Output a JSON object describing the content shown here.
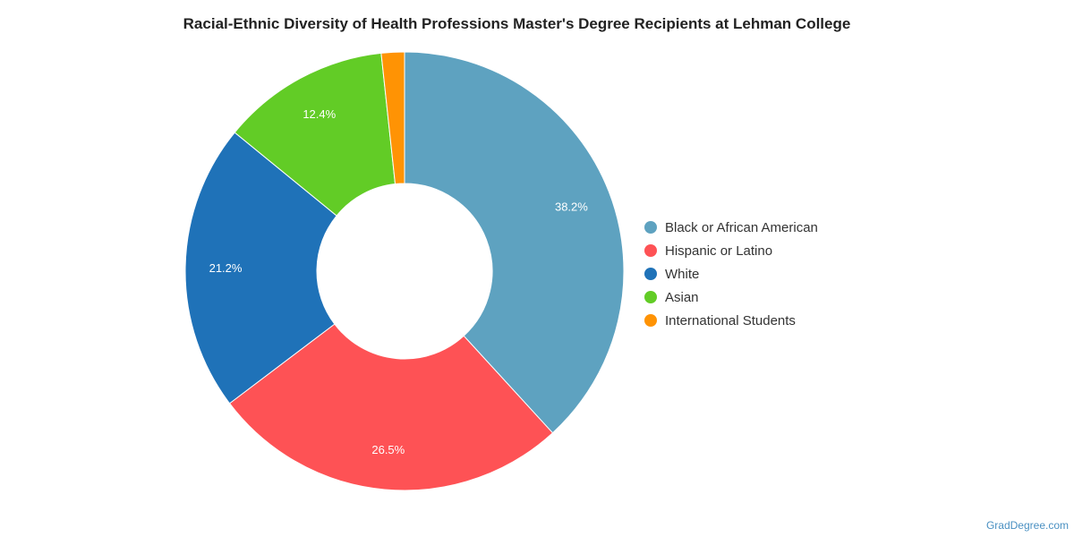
{
  "chart_data": {
    "type": "pie",
    "title": "Racial-Ethnic Diversity of Health Professions Master's Degree Recipients at Lehman College",
    "legend_position": "right",
    "slices": [
      {
        "name": "Black or African American",
        "value": 38.2,
        "label": "38.2%",
        "color": "#5ea2c0"
      },
      {
        "name": "Hispanic or Latino",
        "value": 26.5,
        "label": "26.5%",
        "color": "#fe5255"
      },
      {
        "name": "White",
        "value": 21.2,
        "label": "21.2%",
        "color": "#1f72b8"
      },
      {
        "name": "Asian",
        "value": 12.4,
        "label": "12.4%",
        "color": "#62cc26"
      },
      {
        "name": "International Students",
        "value": 1.7,
        "label": "",
        "color": "#ff9304"
      }
    ]
  },
  "watermark": "GradDegree.com"
}
